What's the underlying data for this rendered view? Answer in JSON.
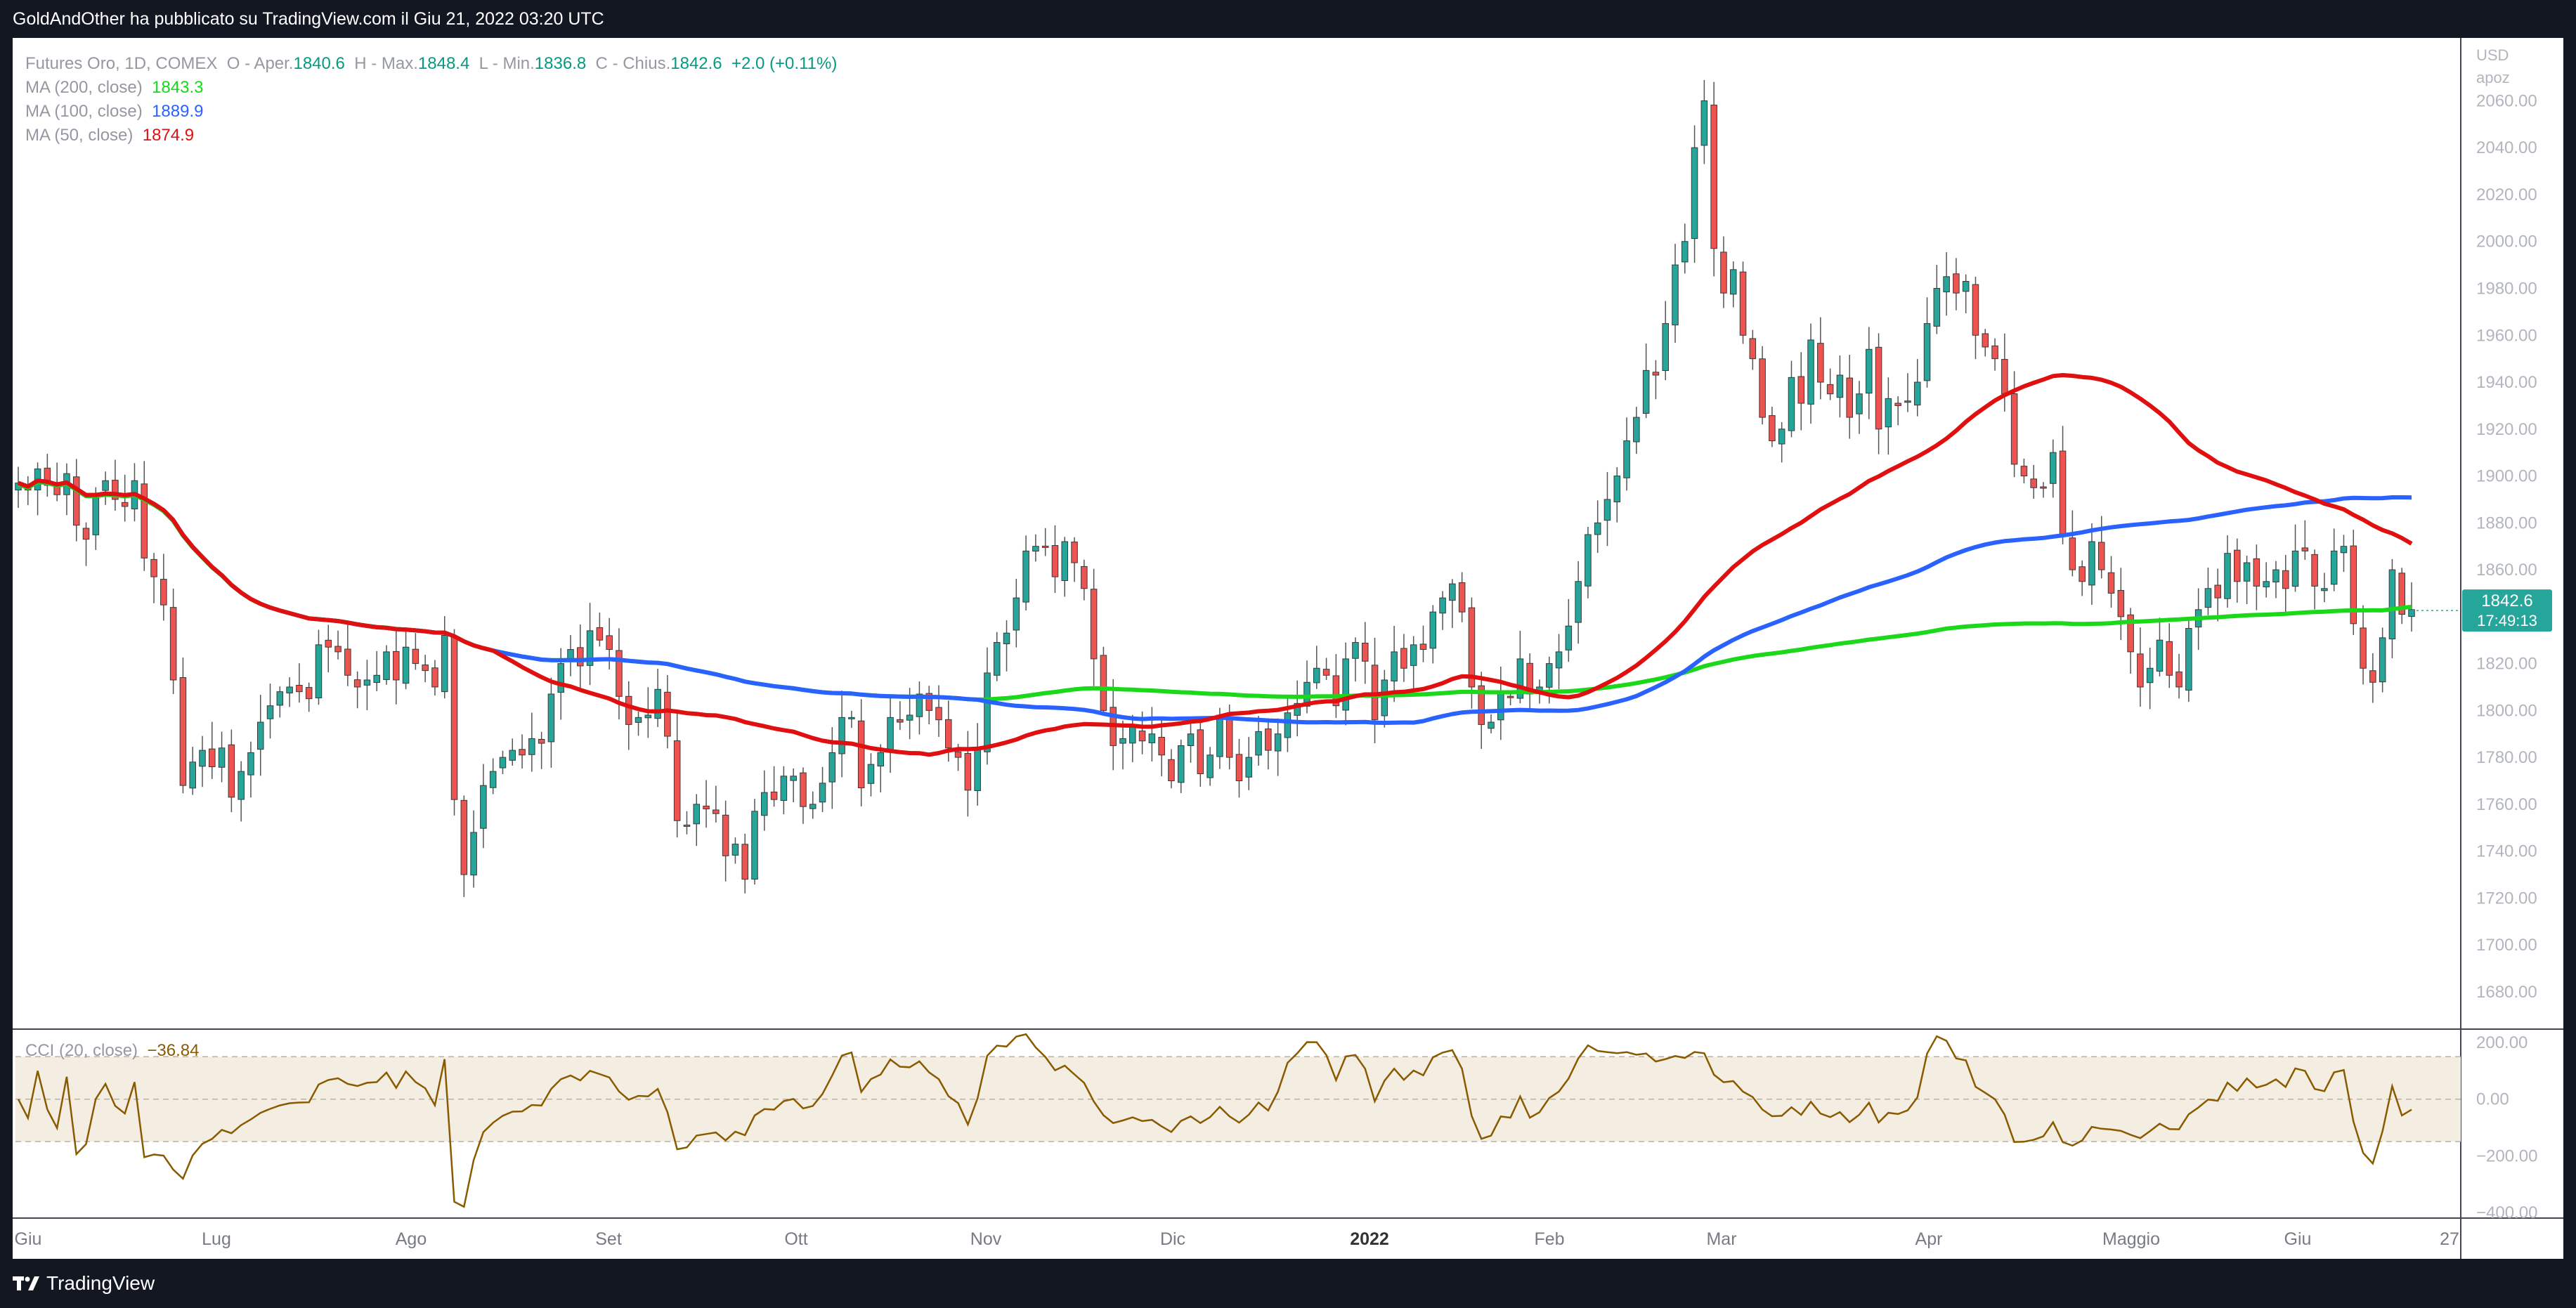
{
  "header": {
    "publish_note": "GoldAndOther ha pubblicato su TradingView.com il Giu 21, 2022 03:20 UTC"
  },
  "legend": {
    "symbol": "Futures Oro, 1D, COMEX",
    "o_label": "O",
    "o_sep": "- Aper.",
    "o_value": "1840.6",
    "h_label": "H",
    "h_sep": "- Max.",
    "h_value": "1848.4",
    "l_label": "L",
    "l_sep": "- Min.",
    "l_value": "1836.8",
    "c_label": "C",
    "c_sep": "- Chius.",
    "c_value": "1842.6",
    "change": "+2.0 (+0.11%)",
    "ma200_label": "MA (200, close)",
    "ma200_value": "1843.3",
    "ma100_label": "MA (100, close)",
    "ma100_value": "1889.9",
    "ma50_label": "MA (50, close)",
    "ma50_value": "1874.9"
  },
  "cci_legend": {
    "label": "CCI (20, close)",
    "value": "−36.84"
  },
  "price_axis": {
    "currency": "USD",
    "mode": "apoz",
    "last_price": "1842.6",
    "countdown": "17:49:13"
  },
  "footer": {
    "brand": "TradingView"
  },
  "colors": {
    "up": "#26a69a",
    "down": "#ef5350",
    "ma200": "#1bd81b",
    "ma100": "#2962ff",
    "ma50": "#e01010",
    "cci": "#8a5a00",
    "cci_band": "#f3ede2",
    "last_price_tag": "#26a69a"
  },
  "chart_data": [
    {
      "type": "candlestick",
      "title": "Futures Oro, 1D, COMEX",
      "ylim": [
        1665,
        2085
      ],
      "y_ticks": [
        1680,
        1700,
        1720,
        1740,
        1760,
        1780,
        1800,
        1820,
        1840,
        1860,
        1880,
        1900,
        1920,
        1940,
        1960,
        1980,
        2000,
        2020,
        2040,
        2060
      ],
      "x_labels": [
        "Giu",
        "Lug",
        "Ago",
        "Set",
        "Ott",
        "Nov",
        "Dic",
        "2022",
        "Feb",
        "Mar",
        "Apr",
        "Maggio",
        "Giu",
        "27"
      ],
      "close_series": [
        1897,
        1894,
        1903,
        1896,
        1892,
        1901,
        1879,
        1873,
        1892,
        1898,
        1890,
        1887,
        1898,
        1865,
        1857,
        1845,
        1813,
        1768,
        1778,
        1783,
        1776,
        1784,
        1763,
        1774,
        1782,
        1795,
        1802,
        1808,
        1810,
        1808,
        1805,
        1828,
        1827,
        1825,
        1815,
        1810,
        1813,
        1815,
        1825,
        1813,
        1827,
        1820,
        1817,
        1810,
        1832,
        1762,
        1730,
        1748,
        1768,
        1774,
        1780,
        1783,
        1781,
        1788,
        1786,
        1807,
        1820,
        1826,
        1819,
        1834,
        1830,
        1826,
        1806,
        1794,
        1797,
        1798,
        1809,
        1789,
        1753,
        1751,
        1760,
        1758,
        1756,
        1738,
        1743,
        1728,
        1757,
        1765,
        1762,
        1772,
        1772,
        1759,
        1760,
        1769,
        1782,
        1797,
        1797,
        1767,
        1777,
        1782,
        1797,
        1795,
        1798,
        1807,
        1800,
        1796,
        1784,
        1780,
        1766,
        1784,
        1816,
        1829,
        1833,
        1848,
        1868,
        1870,
        1870,
        1857,
        1872,
        1863,
        1852,
        1822,
        1800,
        1785,
        1788,
        1793,
        1787,
        1790,
        1781,
        1770,
        1785,
        1790,
        1773,
        1781,
        1798,
        1780,
        1770,
        1780,
        1791,
        1783,
        1790,
        1799,
        1803,
        1812,
        1818,
        1815,
        1802,
        1822,
        1829,
        1821,
        1796,
        1813,
        1825,
        1818,
        1828,
        1826,
        1842,
        1848,
        1854,
        1842,
        1810,
        1794,
        1795,
        1808,
        1806,
        1822,
        1807,
        1810,
        1820,
        1825,
        1836,
        1855,
        1875,
        1880,
        1890,
        1900,
        1915,
        1925,
        1945,
        1943,
        1965,
        1990,
        2000,
        2040,
        2060,
        1997,
        1978,
        1988,
        1960,
        1950,
        1925,
        1915,
        1920,
        1942,
        1931,
        1958,
        1940,
        1935,
        1943,
        1925,
        1935,
        1954,
        1920,
        1933,
        1930,
        1932,
        1940,
        1965,
        1980,
        1985,
        1978,
        1983,
        1960,
        1955,
        1950,
        1935,
        1905,
        1900,
        1895,
        1895,
        1910,
        1875,
        1860,
        1855,
        1872,
        1860,
        1850,
        1840,
        1825,
        1810,
        1818,
        1830,
        1815,
        1810,
        1835,
        1843,
        1852,
        1848,
        1867,
        1855,
        1863,
        1853,
        1855,
        1860,
        1852,
        1868,
        1868,
        1853,
        1852,
        1868,
        1870,
        1837,
        1818,
        1812,
        1831,
        1860,
        1841,
        1843
      ],
      "ma50_last": 1874.9,
      "ma100_last": 1889.9,
      "ma200_last": 1843.3,
      "last_price": 1842.6
    },
    {
      "type": "line",
      "title": "CCI (20, close)",
      "ylim": [
        -420,
        240
      ],
      "y_ticks": [
        200,
        0,
        -200,
        -400
      ],
      "band": [
        -150,
        150
      ],
      "last_value": -36.84
    }
  ]
}
